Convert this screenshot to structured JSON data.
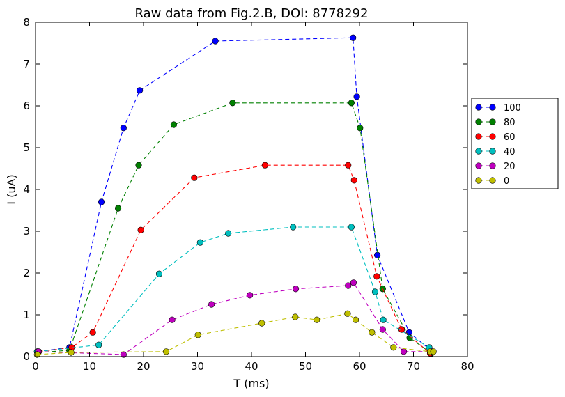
{
  "chart_data": {
    "type": "line",
    "title": "Raw data from Fig.2.B, DOI: 8778292",
    "xlabel": "T (ms)",
    "ylabel": "I (uA)",
    "xlim": [
      0,
      80
    ],
    "ylim": [
      0,
      8
    ],
    "xticks": [
      0,
      10,
      20,
      30,
      40,
      50,
      60,
      70,
      80
    ],
    "yticks": [
      0,
      1,
      2,
      3,
      4,
      5,
      6,
      7,
      8
    ],
    "grid": false,
    "legend": "right",
    "series": [
      {
        "name": "100",
        "color": "#0000ff",
        "x": [
          0.3,
          6.3,
          12.2,
          16.3,
          19.3,
          33.3,
          58.8,
          59.5,
          63.3,
          69.2,
          73.5
        ],
        "y": [
          0.12,
          0.22,
          3.7,
          5.47,
          6.37,
          7.55,
          7.63,
          6.22,
          2.43,
          0.58,
          0.12
        ]
      },
      {
        "name": "80",
        "color": "#008000",
        "x": [
          0.5,
          6.3,
          15.3,
          19.1,
          25.6,
          36.5,
          58.5,
          60.1,
          64.3,
          69.3,
          73.3
        ],
        "y": [
          0.1,
          0.15,
          3.55,
          4.58,
          5.55,
          6.07,
          6.07,
          5.47,
          1.62,
          0.45,
          0.08
        ]
      },
      {
        "name": "60",
        "color": "#ff0000",
        "x": [
          0.6,
          6.7,
          10.6,
          19.5,
          29.4,
          42.5,
          57.9,
          59.0,
          63.2,
          67.8,
          73.1
        ],
        "y": [
          0.12,
          0.22,
          0.58,
          3.03,
          4.28,
          4.58,
          4.58,
          4.22,
          1.92,
          0.65,
          0.08
        ]
      },
      {
        "name": "40",
        "color": "#00bfbf",
        "x": [
          0.3,
          11.7,
          22.9,
          30.5,
          35.7,
          47.7,
          58.5,
          62.9,
          64.4,
          72.9
        ],
        "y": [
          0.12,
          0.28,
          1.98,
          2.73,
          2.95,
          3.1,
          3.1,
          1.55,
          0.88,
          0.22
        ]
      },
      {
        "name": "20",
        "color": "#bf00bf",
        "x": [
          0.5,
          16.3,
          25.3,
          32.6,
          39.7,
          48.2,
          57.9,
          58.9,
          64.3,
          68.2,
          73.4
        ],
        "y": [
          0.12,
          0.05,
          0.88,
          1.25,
          1.47,
          1.62,
          1.7,
          1.77,
          0.65,
          0.12,
          0.12
        ]
      },
      {
        "name": "0",
        "color": "#bfbf00",
        "x": [
          0.3,
          6.6,
          24.2,
          30.1,
          41.9,
          48.1,
          52.1,
          57.8,
          59.3,
          62.3,
          66.3,
          73.1,
          73.7
        ],
        "y": [
          0.05,
          0.1,
          0.12,
          0.52,
          0.8,
          0.95,
          0.88,
          1.03,
          0.88,
          0.58,
          0.22,
          0.12,
          0.12
        ]
      }
    ]
  }
}
